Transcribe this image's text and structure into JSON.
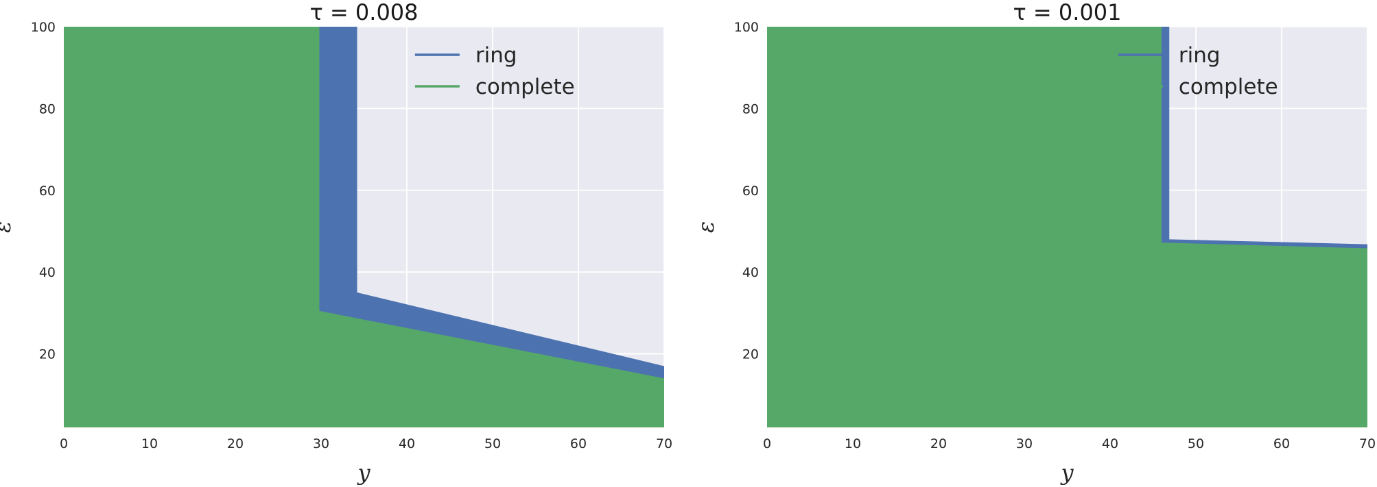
{
  "colors": {
    "background": "#ffffff",
    "plot_background": "#e9e9f1",
    "grid": "#ffffff",
    "ring": "#4c72b0",
    "complete": "#55a868"
  },
  "chart_data": [
    {
      "type": "area",
      "title": "τ = 0.008",
      "xlabel": "y",
      "ylabel": "ε",
      "xlim": [
        0,
        70
      ],
      "ylim": [
        2,
        100
      ],
      "xticks": [
        0,
        10,
        20,
        30,
        40,
        50,
        60,
        70
      ],
      "yticks": [
        20,
        40,
        60,
        80,
        100
      ],
      "grid": true,
      "legend_position": "top-right",
      "series": [
        {
          "name": "ring",
          "color_key": "ring",
          "boundary": [
            [
              0,
              100
            ],
            [
              34.2,
              100
            ],
            [
              34.2,
              35
            ],
            [
              70,
              17
            ]
          ]
        },
        {
          "name": "complete",
          "color_key": "complete",
          "boundary": [
            [
              0,
              100
            ],
            [
              29.8,
              100
            ],
            [
              29.8,
              30.5
            ],
            [
              70,
              14
            ]
          ]
        }
      ]
    },
    {
      "type": "area",
      "title": "τ = 0.001",
      "xlabel": "y",
      "ylabel": "ε",
      "xlim": [
        0,
        70
      ],
      "ylim": [
        2,
        100
      ],
      "xticks": [
        0,
        10,
        20,
        30,
        40,
        50,
        60,
        70
      ],
      "yticks": [
        20,
        40,
        60,
        80,
        100
      ],
      "grid": true,
      "legend_position": "top-right",
      "series": [
        {
          "name": "ring",
          "color_key": "ring",
          "boundary": [
            [
              0,
              100
            ],
            [
              46.9,
              100
            ],
            [
              46.9,
              48
            ],
            [
              70,
              46.8
            ]
          ]
        },
        {
          "name": "complete",
          "color_key": "complete",
          "boundary": [
            [
              0,
              100
            ],
            [
              46.0,
              100
            ],
            [
              46.0,
              47.2
            ],
            [
              70,
              45.8
            ]
          ]
        }
      ]
    }
  ]
}
